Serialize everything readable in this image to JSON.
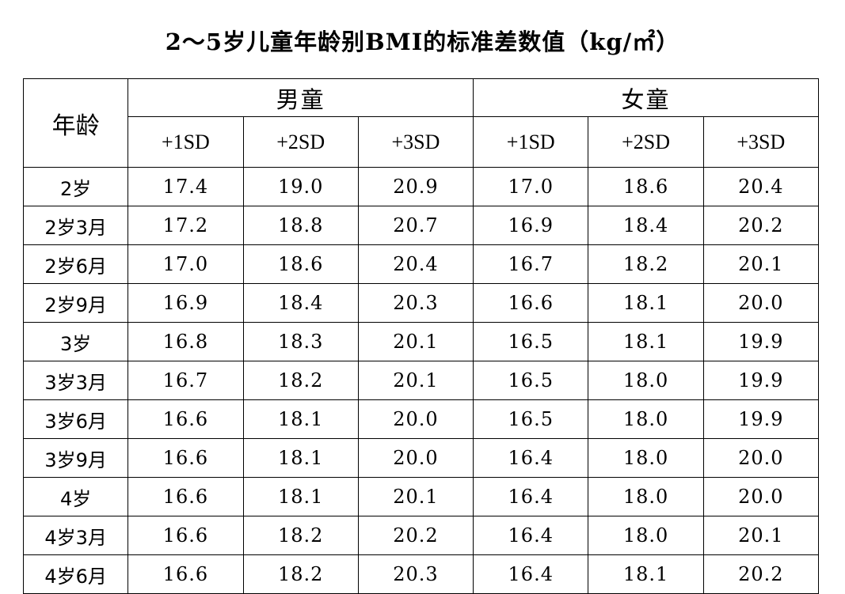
{
  "title": "2～5岁儿童年龄别BMI的标准差数值（kg/㎡）",
  "table": {
    "age_header": "年龄",
    "groups": [
      "男童",
      "女童"
    ],
    "sd_headers": [
      "+1SD",
      "+2SD",
      "+3SD",
      "+1SD",
      "+2SD",
      "+3SD"
    ],
    "rows": [
      {
        "age": "2岁",
        "values": [
          "17.4",
          "19.0",
          "20.9",
          "17.0",
          "18.6",
          "20.4"
        ]
      },
      {
        "age": "2岁3月",
        "values": [
          "17.2",
          "18.8",
          "20.7",
          "16.9",
          "18.4",
          "20.2"
        ]
      },
      {
        "age": "2岁6月",
        "values": [
          "17.0",
          "18.6",
          "20.4",
          "16.7",
          "18.2",
          "20.1"
        ]
      },
      {
        "age": "2岁9月",
        "values": [
          "16.9",
          "18.4",
          "20.3",
          "16.6",
          "18.1",
          "20.0"
        ]
      },
      {
        "age": "3岁",
        "values": [
          "16.8",
          "18.3",
          "20.1",
          "16.5",
          "18.1",
          "19.9"
        ]
      },
      {
        "age": "3岁3月",
        "values": [
          "16.7",
          "18.2",
          "20.1",
          "16.5",
          "18.0",
          "19.9"
        ]
      },
      {
        "age": "3岁6月",
        "values": [
          "16.6",
          "18.1",
          "20.0",
          "16.5",
          "18.0",
          "19.9"
        ]
      },
      {
        "age": "3岁9月",
        "values": [
          "16.6",
          "18.1",
          "20.0",
          "16.4",
          "18.0",
          "20.0"
        ]
      },
      {
        "age": "4岁",
        "values": [
          "16.6",
          "18.1",
          "20.1",
          "16.4",
          "18.0",
          "20.0"
        ]
      },
      {
        "age": "4岁3月",
        "values": [
          "16.6",
          "18.2",
          "20.2",
          "16.4",
          "18.0",
          "20.1"
        ]
      },
      {
        "age": "4岁6月",
        "values": [
          "16.6",
          "18.2",
          "20.3",
          "16.4",
          "18.1",
          "20.2"
        ]
      }
    ]
  }
}
